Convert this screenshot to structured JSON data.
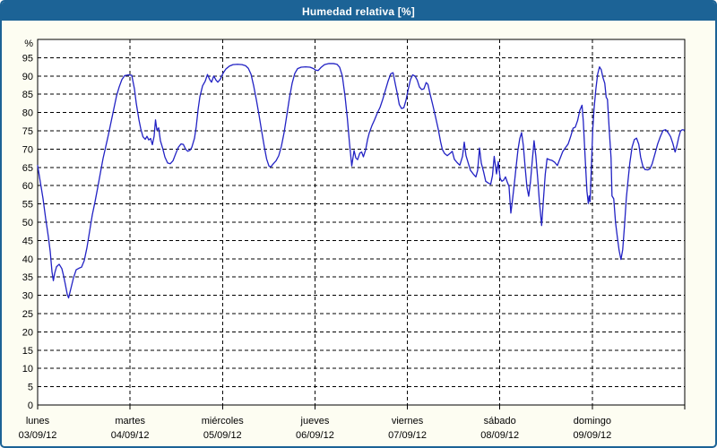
{
  "window": {
    "title": "Humedad relativa [%]"
  },
  "theme": {
    "frame_color": "#1c6396",
    "titlebar_text_color": "#ffffff",
    "page_bg": "#fdfdf2",
    "plot_bg": "#ffffff",
    "grid_color": "#000000",
    "axis_color": "#000000",
    "line_color": "#2222c4"
  },
  "chart_data": {
    "type": "line",
    "title": "Humedad relativa [%]",
    "unit_label": "%",
    "ylim": [
      0,
      100
    ],
    "ytick_step": 5,
    "ytick_labels": [
      "0",
      "5",
      "10",
      "15",
      "20",
      "25",
      "30",
      "35",
      "40",
      "45",
      "50",
      "55",
      "60",
      "65",
      "70",
      "75",
      "80",
      "85",
      "90",
      "95"
    ],
    "grid": true,
    "legend": "none",
    "x_axis": {
      "range_days": [
        0,
        7
      ],
      "days": [
        {
          "name": "lunes",
          "date": "03/09/12"
        },
        {
          "name": "martes",
          "date": "04/09/12"
        },
        {
          "name": "miércoles",
          "date": "05/09/12"
        },
        {
          "name": "jueves",
          "date": "06/09/12"
        },
        {
          "name": "viernes",
          "date": "07/09/12"
        },
        {
          "name": "sábado",
          "date": "08/09/12"
        },
        {
          "name": "domingo",
          "date": "09/09/12"
        }
      ]
    },
    "series": [
      {
        "name": "Humedad relativa [%]",
        "color": "#2222c4",
        "x_unit": "days_from_start",
        "points": [
          [
            0,
            65.5
          ],
          [
            0.029,
            61
          ],
          [
            0.058,
            56.5
          ],
          [
            0.087,
            51
          ],
          [
            0.116,
            46
          ],
          [
            0.136,
            42
          ],
          [
            0.155,
            36.5
          ],
          [
            0.17,
            34
          ],
          [
            0.184,
            36
          ],
          [
            0.204,
            37.8
          ],
          [
            0.233,
            38.5
          ],
          [
            0.262,
            37.3
          ],
          [
            0.281,
            35.3
          ],
          [
            0.301,
            32.8
          ],
          [
            0.32,
            30.3
          ],
          [
            0.335,
            29.3
          ],
          [
            0.359,
            31.8
          ],
          [
            0.388,
            34.8
          ],
          [
            0.417,
            37
          ],
          [
            0.446,
            37.4
          ],
          [
            0.475,
            37.7
          ],
          [
            0.504,
            39.5
          ],
          [
            0.533,
            43
          ],
          [
            0.562,
            47.5
          ],
          [
            0.591,
            52
          ],
          [
            0.62,
            55.5
          ],
          [
            0.65,
            59.5
          ],
          [
            0.679,
            63.5
          ],
          [
            0.708,
            67.5
          ],
          [
            0.737,
            70.7
          ],
          [
            0.766,
            74
          ],
          [
            0.795,
            77.5
          ],
          [
            0.824,
            81
          ],
          [
            0.853,
            84.5
          ],
          [
            0.882,
            87
          ],
          [
            0.911,
            89
          ],
          [
            0.941,
            90.1
          ],
          [
            0.979,
            90.3
          ],
          [
            1.018,
            90.2
          ],
          [
            1.047,
            86.5
          ],
          [
            1.067,
            82.5
          ],
          [
            1.096,
            78
          ],
          [
            1.115,
            75.6
          ],
          [
            1.139,
            73.4
          ],
          [
            1.164,
            72.7
          ],
          [
            1.183,
            73.5
          ],
          [
            1.202,
            72.5
          ],
          [
            1.222,
            72.9
          ],
          [
            1.241,
            71.2
          ],
          [
            1.26,
            73.5
          ],
          [
            1.275,
            78
          ],
          [
            1.29,
            75.2
          ],
          [
            1.309,
            75.8
          ],
          [
            1.328,
            72.3
          ],
          [
            1.353,
            70.2
          ],
          [
            1.377,
            67.8
          ],
          [
            1.406,
            66.2
          ],
          [
            1.435,
            66
          ],
          [
            1.464,
            66.8
          ],
          [
            1.493,
            68.7
          ],
          [
            1.522,
            70.5
          ],
          [
            1.551,
            71.4
          ],
          [
            1.576,
            71.3
          ],
          [
            1.6,
            70
          ],
          [
            1.624,
            69.4
          ],
          [
            1.648,
            69.7
          ],
          [
            1.668,
            70.5
          ],
          [
            1.697,
            73
          ],
          [
            1.716,
            76.2
          ],
          [
            1.736,
            80.9
          ],
          [
            1.755,
            84.3
          ],
          [
            1.784,
            87.3
          ],
          [
            1.813,
            88.6
          ],
          [
            1.837,
            90.4
          ],
          [
            1.862,
            89
          ],
          [
            1.881,
            88.3
          ],
          [
            1.905,
            90
          ],
          [
            1.929,
            88.9
          ],
          [
            1.949,
            88.3
          ],
          [
            1.978,
            89.2
          ],
          [
            2.007,
            90.8
          ],
          [
            2.036,
            91.9
          ],
          [
            2.075,
            92.7
          ],
          [
            2.114,
            93.1
          ],
          [
            2.162,
            93.2
          ],
          [
            2.211,
            93.1
          ],
          [
            2.25,
            92.8
          ],
          [
            2.279,
            92.1
          ],
          [
            2.308,
            90.5
          ],
          [
            2.337,
            87.3
          ],
          [
            2.366,
            83.5
          ],
          [
            2.395,
            79.3
          ],
          [
            2.424,
            74.8
          ],
          [
            2.453,
            70.5
          ],
          [
            2.477,
            67.3
          ],
          [
            2.502,
            65.4
          ],
          [
            2.521,
            65.1
          ],
          [
            2.55,
            66
          ],
          [
            2.579,
            66.8
          ],
          [
            2.608,
            68.2
          ],
          [
            2.637,
            70.8
          ],
          [
            2.666,
            74.5
          ],
          [
            2.695,
            79.2
          ],
          [
            2.724,
            84
          ],
          [
            2.753,
            88
          ],
          [
            2.782,
            90.7
          ],
          [
            2.812,
            92
          ],
          [
            2.85,
            92.4
          ],
          [
            2.899,
            92.5
          ],
          [
            2.947,
            92.4
          ],
          [
            2.986,
            92
          ],
          [
            3.006,
            91.6
          ],
          [
            3.035,
            91.5
          ],
          [
            3.064,
            92.3
          ],
          [
            3.103,
            93.1
          ],
          [
            3.151,
            93.4
          ],
          [
            3.2,
            93.4
          ],
          [
            3.238,
            93.2
          ],
          [
            3.267,
            92.4
          ],
          [
            3.296,
            90
          ],
          [
            3.325,
            84.5
          ],
          [
            3.35,
            78.5
          ],
          [
            3.374,
            71.5
          ],
          [
            3.398,
            65.4
          ],
          [
            3.423,
            69.6
          ],
          [
            3.442,
            67.6
          ],
          [
            3.461,
            67.1
          ],
          [
            3.485,
            68.9
          ],
          [
            3.505,
            69.2
          ],
          [
            3.524,
            67.9
          ],
          [
            3.548,
            69.8
          ],
          [
            3.568,
            72.5
          ],
          [
            3.587,
            74.4
          ],
          [
            3.616,
            76.4
          ],
          [
            3.646,
            78.1
          ],
          [
            3.675,
            79.9
          ],
          [
            3.704,
            81.4
          ],
          [
            3.733,
            83.6
          ],
          [
            3.762,
            86.1
          ],
          [
            3.791,
            88.6
          ],
          [
            3.82,
            90.6
          ],
          [
            3.845,
            90.9
          ],
          [
            3.869,
            87.8
          ],
          [
            3.888,
            85.5
          ],
          [
            3.912,
            82.2
          ],
          [
            3.936,
            81.1
          ],
          [
            3.961,
            81.3
          ],
          [
            3.985,
            83.4
          ],
          [
            4.009,
            86.4
          ],
          [
            4.033,
            89
          ],
          [
            4.057,
            90.3
          ],
          [
            4.082,
            90
          ],
          [
            4.106,
            88.9
          ],
          [
            4.13,
            87
          ],
          [
            4.155,
            86.3
          ],
          [
            4.179,
            86.5
          ],
          [
            4.203,
            88.2
          ],
          [
            4.222,
            87.7
          ],
          [
            4.246,
            85
          ],
          [
            4.276,
            81.9
          ],
          [
            4.305,
            78.7
          ],
          [
            4.334,
            75.4
          ],
          [
            4.359,
            72
          ],
          [
            4.378,
            69.9
          ],
          [
            4.402,
            68.8
          ],
          [
            4.431,
            68.2
          ],
          [
            4.46,
            68.8
          ],
          [
            4.485,
            69.4
          ],
          [
            4.508,
            67.2
          ],
          [
            4.538,
            66.3
          ],
          [
            4.567,
            65.6
          ],
          [
            4.596,
            68
          ],
          [
            4.615,
            71.9
          ],
          [
            4.634,
            68.2
          ],
          [
            4.659,
            66.1
          ],
          [
            4.682,
            64.2
          ],
          [
            4.712,
            63.2
          ],
          [
            4.741,
            62.4
          ],
          [
            4.76,
            64.2
          ],
          [
            4.78,
            70.3
          ],
          [
            4.799,
            66.2
          ],
          [
            4.823,
            63.9
          ],
          [
            4.847,
            61.2
          ],
          [
            4.876,
            60.7
          ],
          [
            4.901,
            60.4
          ],
          [
            4.92,
            62.7
          ],
          [
            4.939,
            68
          ],
          [
            4.964,
            63.2
          ],
          [
            4.983,
            66.6
          ],
          [
            5.003,
            62
          ],
          [
            5.022,
            61.2
          ],
          [
            5.041,
            61.5
          ],
          [
            5.061,
            62.4
          ],
          [
            5.08,
            61
          ],
          [
            5.099,
            59.8
          ],
          [
            5.119,
            52.5
          ],
          [
            5.138,
            56.4
          ],
          [
            5.157,
            60.6
          ],
          [
            5.177,
            65.4
          ],
          [
            5.196,
            69.8
          ],
          [
            5.215,
            72.8
          ],
          [
            5.235,
            74.5
          ],
          [
            5.254,
            71
          ],
          [
            5.273,
            65.2
          ],
          [
            5.293,
            59.6
          ],
          [
            5.312,
            57.1
          ],
          [
            5.331,
            61
          ],
          [
            5.351,
            66.9
          ],
          [
            5.37,
            72.3
          ],
          [
            5.389,
            68.2
          ],
          [
            5.409,
            62.1
          ],
          [
            5.428,
            55.6
          ],
          [
            5.452,
            49.1
          ],
          [
            5.472,
            56.4
          ],
          [
            5.491,
            63.1
          ],
          [
            5.511,
            67.4
          ],
          [
            5.535,
            67.1
          ],
          [
            5.564,
            66.9
          ],
          [
            5.593,
            66.4
          ],
          [
            5.622,
            65.5
          ],
          [
            5.651,
            67.4
          ],
          [
            5.68,
            69.3
          ],
          [
            5.71,
            70.4
          ],
          [
            5.739,
            71.4
          ],
          [
            5.768,
            73.6
          ],
          [
            5.792,
            75.7
          ],
          [
            5.816,
            76
          ],
          [
            5.841,
            77.8
          ],
          [
            5.865,
            80.6
          ],
          [
            5.889,
            82
          ],
          [
            5.903,
            77.5
          ],
          [
            5.923,
            67.5
          ],
          [
            5.942,
            58.5
          ],
          [
            5.957,
            55.1
          ],
          [
            5.966,
            57.2
          ],
          [
            5.976,
            55.6
          ],
          [
            5.99,
            65
          ],
          [
            6.005,
            75.3
          ],
          [
            6.019,
            81
          ],
          [
            6.039,
            86.5
          ],
          [
            6.058,
            90.5
          ],
          [
            6.078,
            92.5
          ],
          [
            6.097,
            91.7
          ],
          [
            6.116,
            89.5
          ],
          [
            6.135,
            88
          ],
          [
            6.15,
            84.2
          ],
          [
            6.164,
            83.6
          ],
          [
            6.184,
            75
          ],
          [
            6.203,
            67.5
          ],
          [
            6.213,
            57.2
          ],
          [
            6.232,
            56.4
          ],
          [
            6.252,
            49.8
          ],
          [
            6.271,
            45.9
          ],
          [
            6.29,
            42.3
          ],
          [
            6.31,
            39.8
          ],
          [
            6.329,
            42.5
          ],
          [
            6.348,
            48.9
          ],
          [
            6.368,
            56.5
          ],
          [
            6.387,
            61.5
          ],
          [
            6.406,
            66.2
          ],
          [
            6.43,
            70.5
          ],
          [
            6.455,
            72.6
          ],
          [
            6.479,
            73
          ],
          [
            6.503,
            71.3
          ],
          [
            6.523,
            67.8
          ],
          [
            6.547,
            65.3
          ],
          [
            6.571,
            64.4
          ],
          [
            6.6,
            64.3
          ],
          [
            6.624,
            64.6
          ],
          [
            6.648,
            66
          ],
          [
            6.677,
            68.6
          ],
          [
            6.707,
            71.4
          ],
          [
            6.736,
            73.4
          ],
          [
            6.765,
            75.1
          ],
          [
            6.794,
            75.3
          ],
          [
            6.823,
            74.4
          ],
          [
            6.847,
            73.4
          ],
          [
            6.872,
            71.5
          ],
          [
            6.896,
            69.2
          ],
          [
            6.915,
            70.9
          ],
          [
            6.935,
            73.2
          ],
          [
            6.954,
            74.9
          ],
          [
            6.973,
            75.3
          ],
          [
            6.993,
            75.2
          ]
        ]
      }
    ]
  }
}
